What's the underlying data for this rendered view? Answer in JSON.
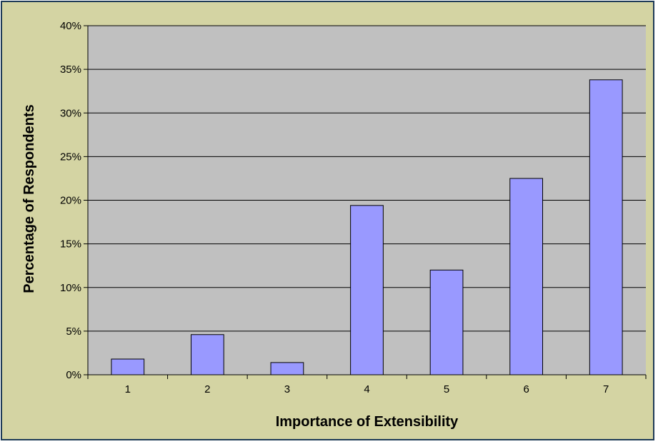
{
  "chart_data": {
    "type": "bar",
    "categories": [
      "1",
      "2",
      "3",
      "4",
      "5",
      "6",
      "7"
    ],
    "values": [
      1.8,
      4.6,
      1.4,
      19.4,
      12.0,
      22.5,
      33.8
    ],
    "title": "",
    "xlabel": "Importance of Extensibility",
    "ylabel": "Percentage of Respondents",
    "ylim": [
      0,
      40
    ],
    "yticks": [
      "0%",
      "5%",
      "10%",
      "15%",
      "20%",
      "25%",
      "30%",
      "35%",
      "40%"
    ],
    "grid": true,
    "colors": {
      "background": "#d4d4a3",
      "plot_area": "#c0c0c0",
      "bar_fill": "#9999ff",
      "bar_stroke": "#000000",
      "gridline": "#000000",
      "frame_border": "#1f3b57"
    }
  }
}
